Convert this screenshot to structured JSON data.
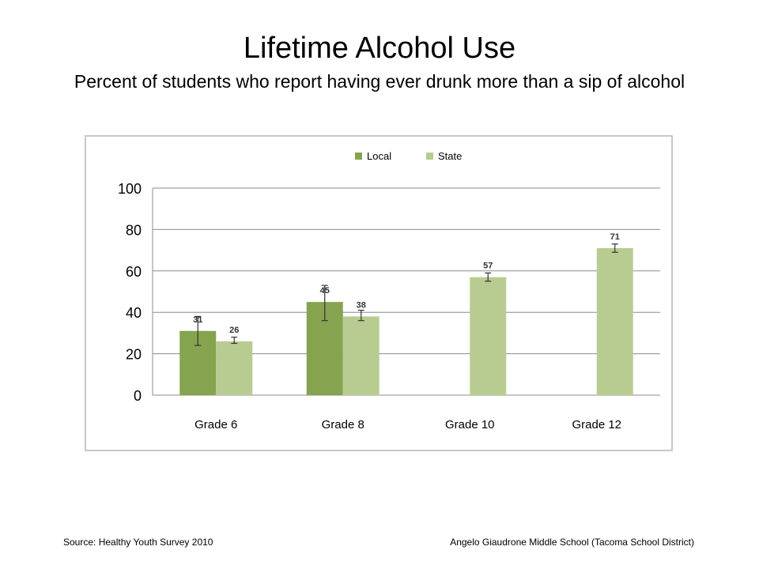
{
  "slide": {
    "title": "Lifetime Alcohol Use",
    "subtitle": "Percent of students who report having ever drunk more than a sip of alcohol",
    "source": "Source: Healthy Youth Survey 2010",
    "school": "Angelo Giaudrone Middle School (Tacoma School District)"
  },
  "chart_data": {
    "type": "bar",
    "title": "",
    "xlabel": "",
    "ylabel": "",
    "categories": [
      "Grade 6",
      "Grade 8",
      "Grade 10",
      "Grade 12"
    ],
    "series": [
      {
        "name": "Local",
        "values": [
          31,
          45,
          null,
          null
        ],
        "data_labels": [
          "31",
          "45",
          "",
          ""
        ],
        "error_low": [
          24,
          36,
          null,
          null
        ],
        "error_high": [
          38,
          53,
          null,
          null
        ],
        "color": "#86a34f"
      },
      {
        "name": "State",
        "values": [
          26,
          38,
          57,
          71
        ],
        "data_labels": [
          "26",
          "38",
          "57",
          "71"
        ],
        "error_low": [
          25,
          36,
          55,
          69
        ],
        "error_high": [
          28,
          41,
          59,
          73
        ],
        "color": "#b8cc92"
      }
    ],
    "ylim": [
      0,
      100
    ],
    "yticks": [
      "0",
      "20",
      "40",
      "60",
      "80",
      "100"
    ],
    "grid": true,
    "legend_position": "top"
  }
}
